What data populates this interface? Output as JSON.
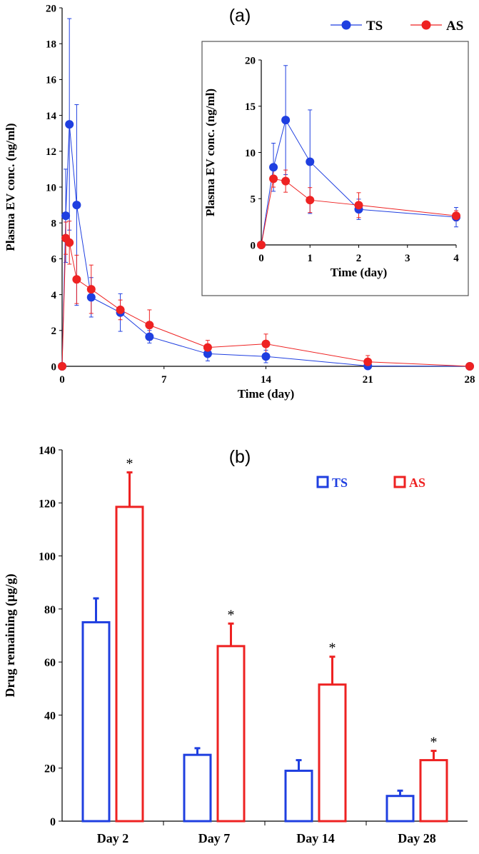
{
  "chart_data": [
    {
      "id": "a",
      "type": "line",
      "panel_label": "(a)",
      "xlabel": "Time (day)",
      "ylabel": "Plasma EV conc. (ng/ml)",
      "xlim": [
        0,
        28
      ],
      "ylim": [
        0,
        20
      ],
      "xticks": [
        0,
        7,
        14,
        21,
        28
      ],
      "yticks": [
        0,
        2,
        4,
        6,
        8,
        10,
        12,
        14,
        16,
        18,
        20
      ],
      "x_tick_labels": [
        "0",
        "7",
        "14",
        "21",
        "28"
      ],
      "y_tick_labels": [
        "0",
        "2",
        "4",
        "6",
        "8",
        "10",
        "12",
        "14",
        "16",
        "18",
        "20"
      ],
      "legend_position": "top-right",
      "series": [
        {
          "name": "TS",
          "color": "#1f3fe0",
          "x": [
            0,
            0.25,
            0.5,
            1,
            2,
            4,
            6,
            10,
            14,
            21,
            28
          ],
          "y": [
            0,
            8.4,
            13.5,
            9.0,
            3.85,
            3.0,
            1.65,
            0.7,
            0.55,
            0.02,
            0
          ],
          "err": [
            0,
            2.6,
            5.9,
            5.6,
            1.1,
            1.05,
            0.35,
            0.4,
            0.35,
            0.05,
            0
          ]
        },
        {
          "name": "AS",
          "color": "#ee2222",
          "x": [
            0,
            0.25,
            0.5,
            1,
            2,
            4,
            6,
            10,
            14,
            21,
            28
          ],
          "y": [
            0,
            7.15,
            6.9,
            4.85,
            4.3,
            3.15,
            2.3,
            1.05,
            1.25,
            0.25,
            0
          ],
          "err": [
            0,
            0.9,
            1.2,
            1.35,
            1.35,
            0.55,
            0.85,
            0.4,
            0.55,
            0.35,
            0
          ]
        }
      ]
    },
    {
      "id": "a-inset",
      "type": "line",
      "xlabel": "Time (day)",
      "ylabel": "Plasma EV conc. (ng/ml)",
      "xlim": [
        0,
        4
      ],
      "ylim": [
        0,
        20
      ],
      "xticks": [
        0,
        1,
        2,
        3,
        4
      ],
      "yticks": [
        0,
        5,
        10,
        15,
        20
      ],
      "x_tick_labels": [
        "0",
        "1",
        "2",
        "3",
        "4"
      ],
      "y_tick_labels": [
        "0",
        "5",
        "10",
        "15",
        "20"
      ],
      "series": [
        {
          "name": "TS",
          "color": "#1f3fe0",
          "x": [
            0,
            0.25,
            0.5,
            1,
            2,
            4
          ],
          "y": [
            0,
            8.4,
            13.5,
            9.0,
            3.85,
            3.0
          ],
          "err": [
            0,
            2.6,
            5.9,
            5.6,
            1.1,
            1.05
          ]
        },
        {
          "name": "AS",
          "color": "#ee2222",
          "x": [
            0,
            0.25,
            0.5,
            1,
            2,
            4
          ],
          "y": [
            0,
            7.15,
            6.9,
            4.85,
            4.3,
            3.15
          ],
          "err": [
            0,
            0.9,
            1.2,
            1.35,
            1.35,
            0.55
          ]
        }
      ]
    },
    {
      "id": "b",
      "type": "bar",
      "panel_label": "(b)",
      "xlabel": "",
      "ylabel": "Drug remaining (µg/g)",
      "ylim": [
        0,
        140
      ],
      "yticks": [
        0,
        20,
        40,
        60,
        80,
        100,
        120,
        140
      ],
      "y_tick_labels": [
        "0",
        "20",
        "40",
        "60",
        "80",
        "100",
        "120",
        "140"
      ],
      "categories": [
        "Day 2",
        "Day 7",
        "Day 14",
        "Day 28"
      ],
      "legend_position": "top-right",
      "significance_marker": "*",
      "series": [
        {
          "name": "TS",
          "color": "#1f3fe0",
          "values": [
            75,
            25,
            19,
            9.5
          ],
          "err": [
            9,
            2.5,
            4,
            2
          ]
        },
        {
          "name": "AS",
          "color": "#ee2222",
          "values": [
            118.5,
            66,
            51.5,
            23
          ],
          "err": [
            13,
            8.5,
            10.5,
            3.5
          ],
          "significant": [
            true,
            true,
            true,
            true
          ]
        }
      ]
    }
  ]
}
